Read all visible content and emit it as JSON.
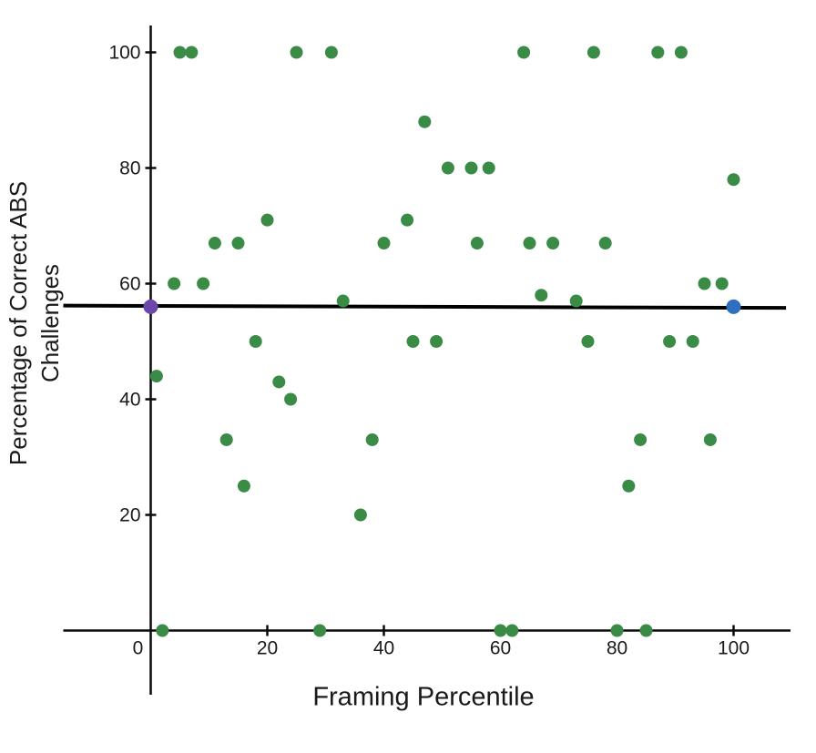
{
  "chart_data": {
    "type": "scatter",
    "title": "",
    "xlabel": "Framing Percentile",
    "ylabel_line1": "Percentage of Correct ABS",
    "ylabel_line2": "Challenges",
    "xlim": [
      -15,
      110
    ],
    "ylim": [
      -11,
      105
    ],
    "grid": false,
    "legend": "none",
    "x_ticks": [
      0,
      20,
      40,
      60,
      80,
      100
    ],
    "y_ticks": [
      20,
      40,
      60,
      80,
      100
    ],
    "axis_color": "#0a0a0a",
    "series": [
      {
        "name": "observations",
        "color": "#3a8b46",
        "points": [
          [
            5,
            100
          ],
          [
            7,
            100
          ],
          [
            25,
            100
          ],
          [
            31,
            100
          ],
          [
            64,
            100
          ],
          [
            76,
            100
          ],
          [
            87,
            100
          ],
          [
            91,
            100
          ],
          [
            47,
            88
          ],
          [
            51,
            80
          ],
          [
            55,
            80
          ],
          [
            58,
            80
          ],
          [
            100,
            78
          ],
          [
            20,
            71
          ],
          [
            44,
            71
          ],
          [
            11,
            67
          ],
          [
            15,
            67
          ],
          [
            40,
            67
          ],
          [
            56,
            67
          ],
          [
            65,
            67
          ],
          [
            69,
            67
          ],
          [
            78,
            67
          ],
          [
            4,
            60
          ],
          [
            9,
            60
          ],
          [
            95,
            60
          ],
          [
            98,
            60
          ],
          [
            67,
            58
          ],
          [
            33,
            57
          ],
          [
            73,
            57
          ],
          [
            18,
            50
          ],
          [
            45,
            50
          ],
          [
            49,
            50
          ],
          [
            75,
            50
          ],
          [
            89,
            50
          ],
          [
            93,
            50
          ],
          [
            1,
            44
          ],
          [
            22,
            43
          ],
          [
            24,
            40
          ],
          [
            13,
            33
          ],
          [
            38,
            33
          ],
          [
            84,
            33
          ],
          [
            96,
            33
          ],
          [
            16,
            25
          ],
          [
            82,
            25
          ],
          [
            36,
            20
          ],
          [
            2,
            0
          ],
          [
            29,
            0
          ],
          [
            60,
            0
          ],
          [
            62,
            0
          ],
          [
            80,
            0
          ],
          [
            85,
            0
          ]
        ]
      },
      {
        "name": "trendline-anchor-left",
        "color": "#6b46ad",
        "points": [
          [
            0,
            56
          ]
        ]
      },
      {
        "name": "trendline-anchor-right",
        "color": "#2e6fbe",
        "points": [
          [
            100,
            56
          ]
        ]
      }
    ],
    "trendline": {
      "color": "#000000",
      "x1": -15,
      "y1": 56.2,
      "x2": 109,
      "y2": 55.8
    }
  }
}
